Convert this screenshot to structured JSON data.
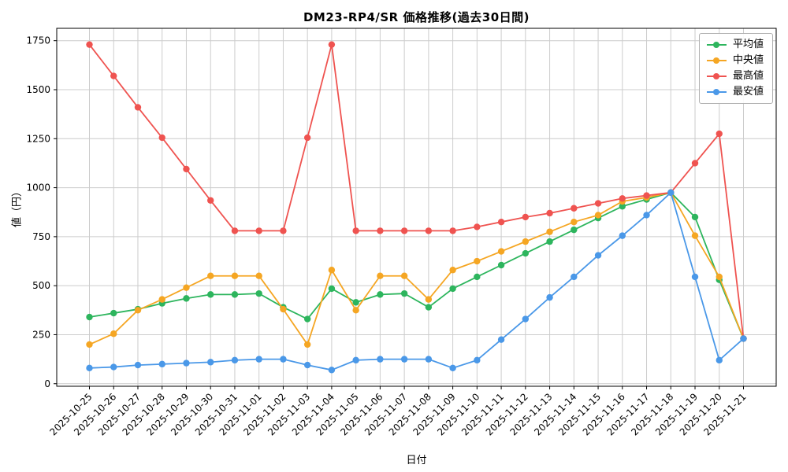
{
  "chart_data": {
    "type": "line",
    "title": "DM23-RP4/SR 価格推移(過去30日間)",
    "xlabel": "日付",
    "ylabel": "値（円）",
    "grid": true,
    "legend_position": "top-right",
    "colors": {
      "grid": "#cccccc",
      "axis": "#000000",
      "background": "#ffffff"
    },
    "yticks": [
      0,
      250,
      500,
      750,
      1000,
      1250,
      1500,
      1750
    ],
    "ylim": [
      -13,
      1813
    ],
    "categories": [
      "2025-10-25",
      "2025-10-26",
      "2025-10-27",
      "2025-10-28",
      "2025-10-29",
      "2025-10-30",
      "2025-10-31",
      "2025-11-01",
      "2025-11-02",
      "2025-11-03",
      "2025-11-04",
      "2025-11-05",
      "2025-11-06",
      "2025-11-07",
      "2025-11-08",
      "2025-11-09",
      "2025-11-10",
      "2025-11-11",
      "2025-11-12",
      "2025-11-13",
      "2025-11-14",
      "2025-11-15",
      "2025-11-16",
      "2025-11-17",
      "2025-11-18",
      "2025-11-19",
      "2025-11-20",
      "2025-11-21"
    ],
    "series": [
      {
        "id": "average",
        "name": "平均値",
        "color": "#2db55d",
        "values": [
          340,
          360,
          380,
          410,
          435,
          455,
          455,
          460,
          390,
          330,
          485,
          415,
          455,
          460,
          390,
          485,
          545,
          605,
          665,
          725,
          785,
          845,
          905,
          940,
          975,
          850,
          530,
          230
        ]
      },
      {
        "id": "median",
        "name": "中央値",
        "color": "#f5a623",
        "values": [
          200,
          255,
          375,
          430,
          490,
          550,
          550,
          550,
          380,
          200,
          580,
          375,
          550,
          550,
          430,
          580,
          625,
          675,
          725,
          775,
          825,
          860,
          930,
          950,
          975,
          755,
          545,
          230
        ]
      },
      {
        "id": "max",
        "name": "最高値",
        "color": "#ef5350",
        "values": [
          1730,
          1570,
          1410,
          1255,
          1095,
          935,
          780,
          780,
          780,
          1255,
          1730,
          780,
          780,
          780,
          780,
          780,
          800,
          825,
          850,
          870,
          895,
          920,
          945,
          960,
          975,
          1125,
          1275,
          230
        ]
      },
      {
        "id": "min",
        "name": "最安値",
        "color": "#4a98e8",
        "values": [
          80,
          85,
          95,
          100,
          105,
          110,
          120,
          125,
          125,
          95,
          70,
          120,
          125,
          125,
          125,
          80,
          120,
          225,
          330,
          440,
          545,
          655,
          755,
          860,
          975,
          545,
          120,
          230
        ]
      }
    ]
  }
}
